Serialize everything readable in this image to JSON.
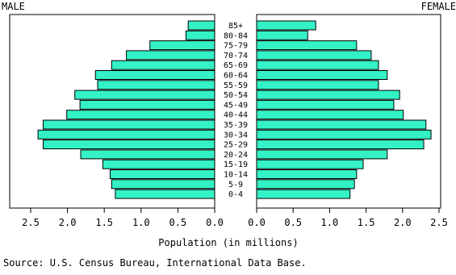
{
  "chart_data": {
    "type": "bar",
    "subtype": "population-pyramid",
    "left_label": "MALE",
    "right_label": "FEMALE",
    "xlabel": "Population (in millions)",
    "source": "Source: U.S. Census Bureau, International Data Base.",
    "xlim": [
      0,
      2.5
    ],
    "tick_labels": [
      "2.5",
      "2.0",
      "1.5",
      "1.0",
      "0.5",
      "0.0",
      "0.0",
      "0.5",
      "1.0",
      "1.5",
      "2.0",
      "2.5"
    ],
    "bar_color": "#33f2c6",
    "categories": [
      "0-4",
      "5-9",
      "10-14",
      "15-19",
      "20-24",
      "25-29",
      "30-34",
      "35-39",
      "40-44",
      "45-49",
      "50-54",
      "55-59",
      "60-64",
      "65-69",
      "70-74",
      "75-79",
      "80-84",
      "85+"
    ],
    "series": [
      {
        "name": "MALE",
        "values": [
          1.35,
          1.4,
          1.42,
          1.52,
          1.82,
          2.33,
          2.4,
          2.33,
          2.01,
          1.83,
          1.9,
          1.59,
          1.62,
          1.4,
          1.2,
          0.88,
          0.39,
          0.36
        ]
      },
      {
        "name": "FEMALE",
        "values": [
          1.28,
          1.34,
          1.37,
          1.46,
          1.79,
          2.29,
          2.39,
          2.32,
          2.01,
          1.88,
          1.96,
          1.67,
          1.79,
          1.67,
          1.57,
          1.37,
          0.7,
          0.81
        ]
      }
    ]
  }
}
